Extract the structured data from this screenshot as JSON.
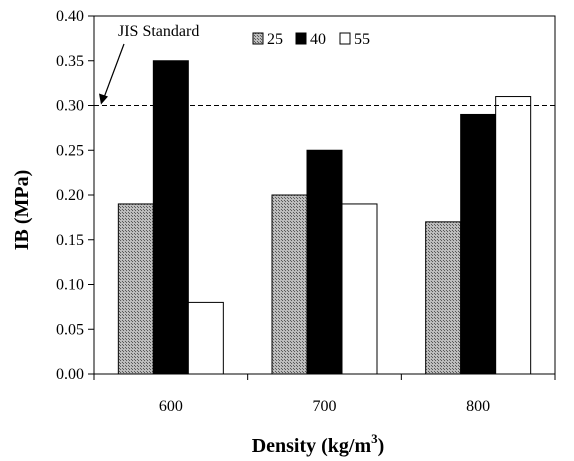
{
  "chart_data": {
    "type": "bar",
    "categories": [
      "600",
      "700",
      "800"
    ],
    "series": [
      {
        "name": "25",
        "values": [
          0.19,
          0.2,
          0.17
        ],
        "fill": "#9a9a9a",
        "pattern": "crosshatch"
      },
      {
        "name": "40",
        "values": [
          0.35,
          0.25,
          0.29
        ],
        "fill": "#000000"
      },
      {
        "name": "55",
        "values": [
          0.08,
          0.19,
          0.31
        ],
        "fill": "#ffffff"
      }
    ],
    "ylim": [
      0,
      0.4
    ],
    "yticks": [
      "0.00",
      "0.05",
      "0.10",
      "0.15",
      "0.20",
      "0.25",
      "0.30",
      "0.35",
      "0.40"
    ],
    "ylabel": "IB (MPa)",
    "xlabel_main": "Density (kg/m",
    "xlabel_sup": "3",
    "xlabel_tail": ")",
    "reference_line": {
      "value": 0.3,
      "label": "JIS Standard",
      "style": "dashed"
    },
    "legend_position": "top-center",
    "grid": false
  }
}
